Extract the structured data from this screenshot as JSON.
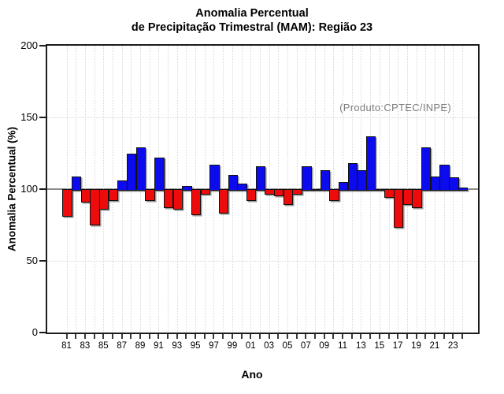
{
  "header": {
    "title_line1": "Anomalia Percentual",
    "title_line2": "de Precipitação Trimestral (MAM): Região 23"
  },
  "annotation": {
    "text": "(Produto:CPTEC/INPE)",
    "color": "#7c7c7c"
  },
  "chart_data": {
    "type": "bar",
    "title": "Anomalia Percentual de Precipitação Trimestral (MAM): Região 23",
    "xlabel": "Ano",
    "ylabel": "Anomalia Percentual (%)",
    "ylim": [
      0,
      200
    ],
    "yticks": [
      0,
      50,
      100,
      150,
      200
    ],
    "baseline_value": 100,
    "legend": "none",
    "grid": {
      "h_dotted_at": [
        50,
        150
      ],
      "v_dotted": "every-year",
      "baseline_solid_at": 100
    },
    "categories": [
      1981,
      1982,
      1983,
      1984,
      1985,
      1986,
      1987,
      1988,
      1989,
      1990,
      1991,
      1992,
      1993,
      1994,
      1995,
      1996,
      1997,
      1998,
      1999,
      2000,
      2001,
      2002,
      2003,
      2004,
      2005,
      2006,
      2007,
      2008,
      2009,
      2010,
      2011,
      2012,
      2013,
      2014,
      2015,
      2016,
      2017,
      2018,
      2019,
      2020,
      2021,
      2022,
      2023,
      2024
    ],
    "values": [
      82,
      109,
      92,
      76,
      87,
      93,
      106,
      125,
      129,
      93,
      122,
      88,
      87,
      102,
      83,
      97,
      117,
      84,
      110,
      104,
      93,
      116,
      97,
      96,
      90,
      97,
      116,
      100,
      113,
      93,
      105,
      118,
      113,
      137,
      100,
      95,
      74,
      90,
      88,
      129,
      109,
      117,
      108,
      101
    ],
    "x_tick_labels": [
      "81",
      "83",
      "85",
      "87",
      "89",
      "91",
      "93",
      "95",
      "97",
      "99",
      "01",
      "03",
      "05",
      "07",
      "09",
      "11",
      "13",
      "15",
      "17",
      "19",
      "21",
      "23"
    ],
    "colors": {
      "above_baseline": "#0b0bee",
      "below_baseline": "#ee0b0b",
      "baseline_bar": "#000000"
    }
  }
}
